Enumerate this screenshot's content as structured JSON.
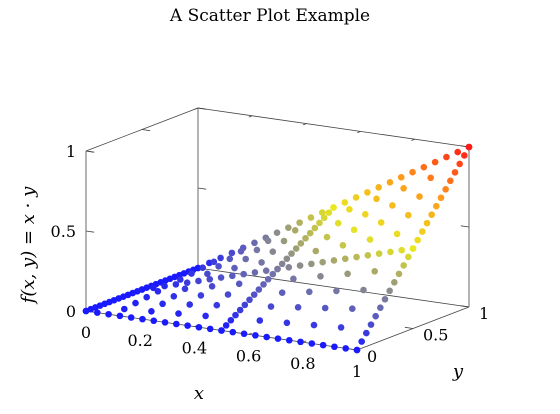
{
  "chart_data": {
    "type": "scatter",
    "title": "A Scatter Plot Example",
    "xlabel": "x",
    "ylabel": "y",
    "zlabel": "f(x, y) = x · y",
    "xlim": [
      0,
      1
    ],
    "ylim": [
      0,
      1
    ],
    "zlim": [
      0,
      1
    ],
    "x_ticks": [
      "0",
      "0.2",
      "0.4",
      "0.6",
      "0.8",
      "1"
    ],
    "y_ticks": [
      "0",
      "0.5",
      "1"
    ],
    "z_ticks": [
      "0",
      "0.5",
      "1"
    ],
    "function": "f(x, y) = x · y",
    "series": [
      {
        "description_values": "grid samples of f(x,y)=x*y",
        "x_lines": [
          0,
          0.5,
          1
        ],
        "y_lines": [
          0,
          0.5,
          1
        ],
        "line_samples": 25,
        "interior_step": 0.1
      }
    ],
    "colormap": [
      "#1a1aff",
      "#7a7aa0",
      "#e8e820",
      "#ff9a1a",
      "#ff1a1a"
    ]
  }
}
